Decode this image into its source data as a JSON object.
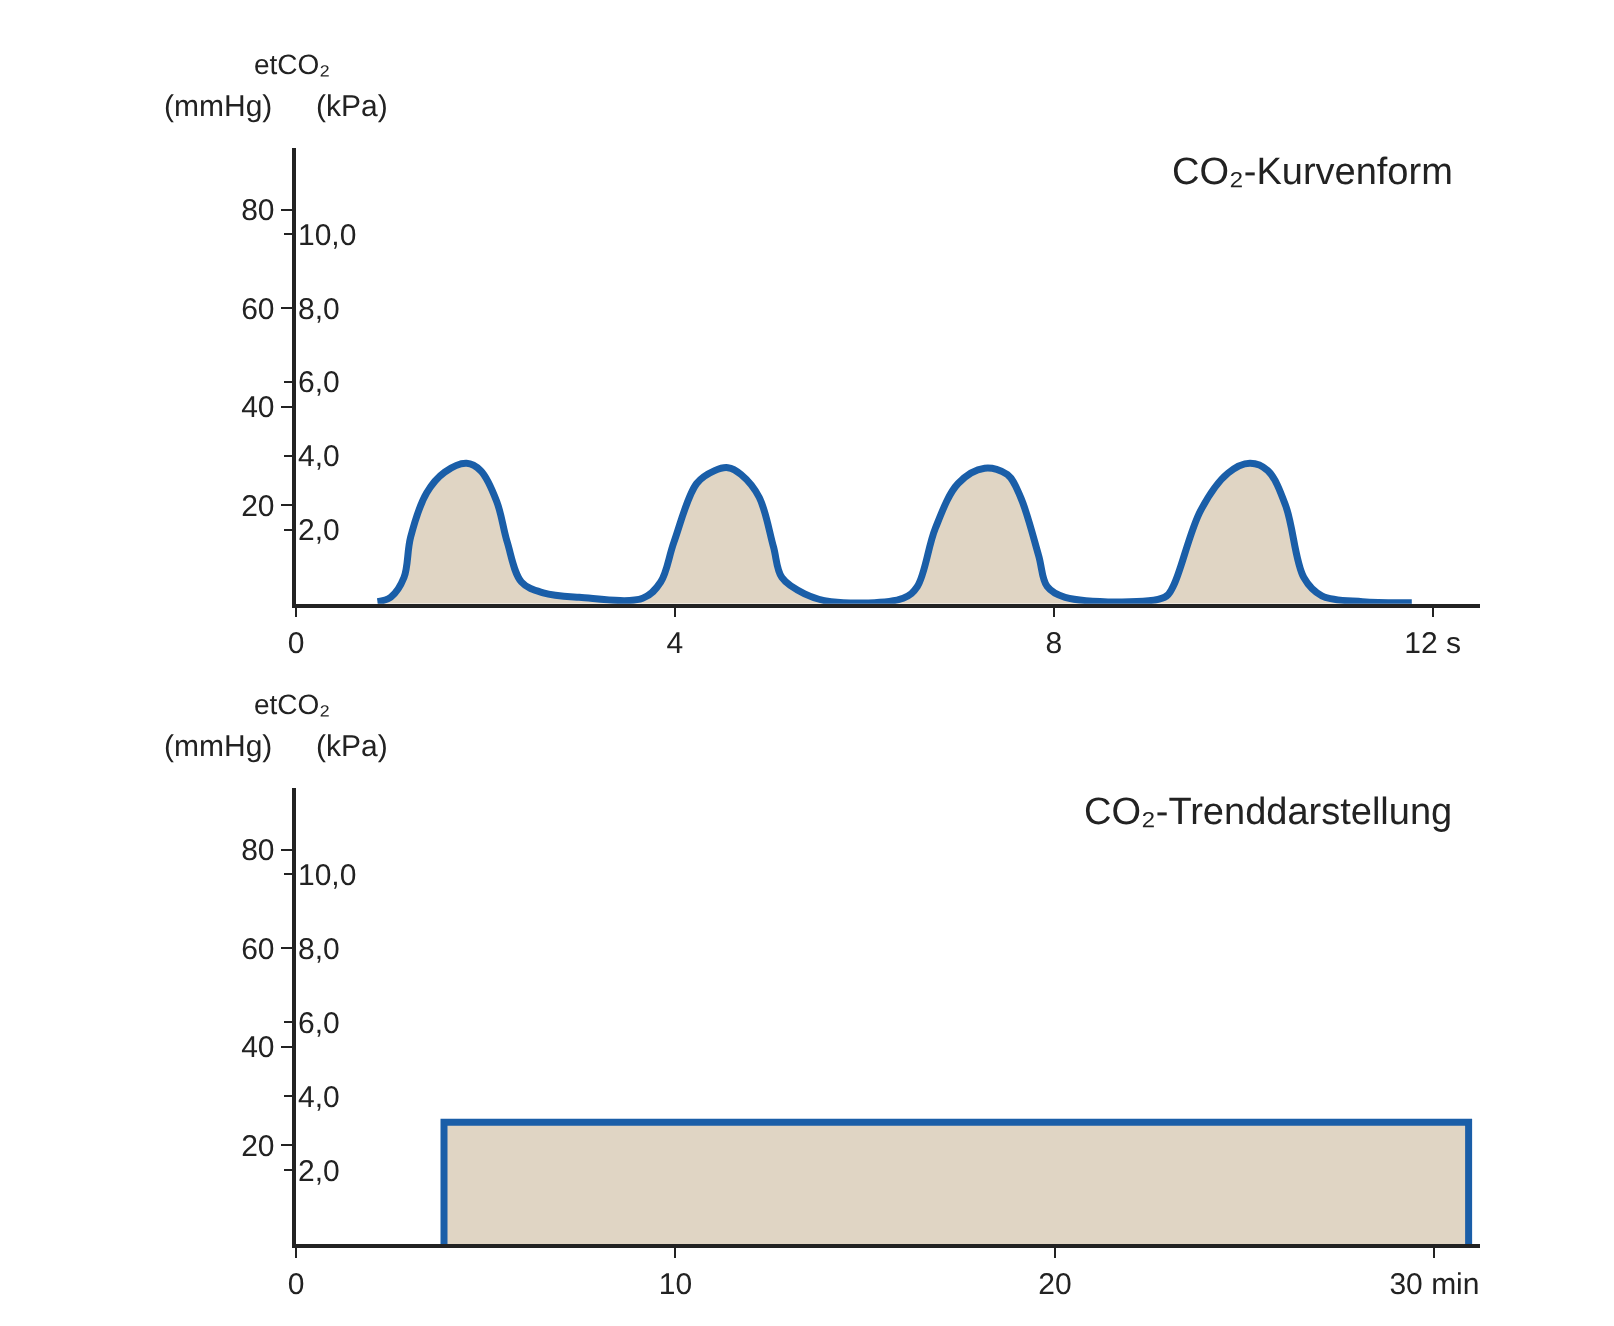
{
  "chart_data": [
    {
      "type": "area",
      "title": "CO₂-Kurvenform",
      "ylabel": "(mmHg)",
      "y2label": "(kPa)",
      "annotations": [
        "etCO₂"
      ],
      "x": [
        0.86,
        1.0,
        1.14,
        1.21,
        1.38,
        1.57,
        1.8,
        1.95,
        2.12,
        2.23,
        2.38,
        2.61,
        2.99,
        3.66,
        3.85,
        3.99,
        4.23,
        4.42,
        4.56,
        4.7,
        4.89,
        5.04,
        5.13,
        5.37,
        5.65,
        6.41,
        6.56,
        6.75,
        6.99,
        7.27,
        7.51,
        7.65,
        7.84,
        7.93,
        8.12,
        9.17,
        9.26,
        9.55,
        9.84,
        10.07,
        10.26,
        10.45,
        10.64,
        10.83,
        11.26,
        11.78
      ],
      "series": [
        {
          "color": "#1a5ea8",
          "values": [
            0.4,
            1.3,
            5.3,
            13.5,
            22.5,
            26.7,
            28.5,
            27,
            20.7,
            12.5,
            4.4,
            2.2,
            1.3,
            1.1,
            4.4,
            12.5,
            24.4,
            27,
            27.6,
            26.2,
            21.6,
            11.6,
            5.3,
            2,
            0.4,
            1.1,
            3.5,
            15.3,
            24.4,
            27.5,
            26.2,
            21.6,
            9.8,
            3.5,
            1.3,
            1.3,
            3.5,
            18.9,
            26.5,
            28.5,
            27,
            19.8,
            5.3,
            1.6,
            0.4,
            0.2
          ]
        }
      ],
      "xlim": [
        0,
        12.5
      ],
      "xticks": [
        0,
        4,
        8,
        {
          "value": 12,
          "label": "12 s"
        }
      ],
      "ylim": [
        0,
        92.5
      ],
      "yticks": [
        20,
        40,
        60,
        80
      ],
      "y2lim": [
        0,
        12.33
      ],
      "y2ticks": [
        {
          "value": 2,
          "label": "2,0"
        },
        {
          "value": 4,
          "label": "4,0"
        },
        {
          "value": 6,
          "label": "6,0"
        },
        {
          "value": 8,
          "label": "8,0"
        },
        {
          "value": 10,
          "label": "10,0"
        }
      ],
      "legend": false,
      "marker": "none",
      "line_style": "solid"
    },
    {
      "type": "area",
      "title": "CO₂-Trenddarstellung",
      "ylabel": "(mmHg)",
      "y2label": "(kPa)",
      "annotations": [
        "etCO₂"
      ],
      "x": [
        3.9,
        3.9,
        30.9,
        30.9
      ],
      "series": [
        {
          "color": "#1a5ea8",
          "values": [
            0,
            24.7,
            24.7,
            0
          ]
        }
      ],
      "xlim": [
        0,
        31.2
      ],
      "xticks": [
        0,
        10,
        20,
        {
          "value": 30,
          "label": "30 min"
        }
      ],
      "ylim": [
        0,
        92.5
      ],
      "yticks": [
        20,
        40,
        60,
        80
      ],
      "y2lim": [
        0,
        12.33
      ],
      "y2ticks": [
        {
          "value": 2,
          "label": "2,0"
        },
        {
          "value": 4,
          "label": "4,0"
        },
        {
          "value": 6,
          "label": "6,0"
        },
        {
          "value": 8,
          "label": "8,0"
        },
        {
          "value": 10,
          "label": "10,0"
        }
      ],
      "legend": false,
      "marker": "none",
      "line_style": "solid"
    }
  ]
}
